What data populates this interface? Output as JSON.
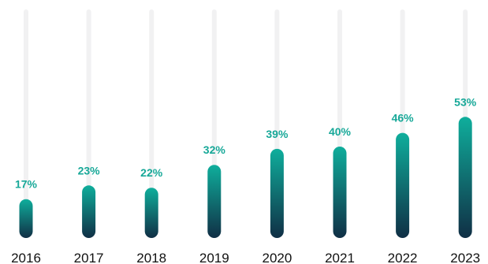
{
  "chart_data": {
    "type": "bar",
    "categories": [
      "2016",
      "2017",
      "2018",
      "2019",
      "2020",
      "2021",
      "2022",
      "2023"
    ],
    "values": [
      17,
      23,
      22,
      32,
      39,
      40,
      46,
      53
    ],
    "value_labels": [
      "17%",
      "23%",
      "22%",
      "32%",
      "39%",
      "40%",
      "46%",
      "53%"
    ],
    "unit": "%",
    "ylim": [
      0,
      100
    ],
    "grid": false,
    "legend": "none",
    "colors": {
      "bar_top": "#0fae9c",
      "bar_bottom": "#102f45",
      "track": "#f1f1f2",
      "value_label": "#17a898",
      "year_label": "#111111"
    }
  }
}
